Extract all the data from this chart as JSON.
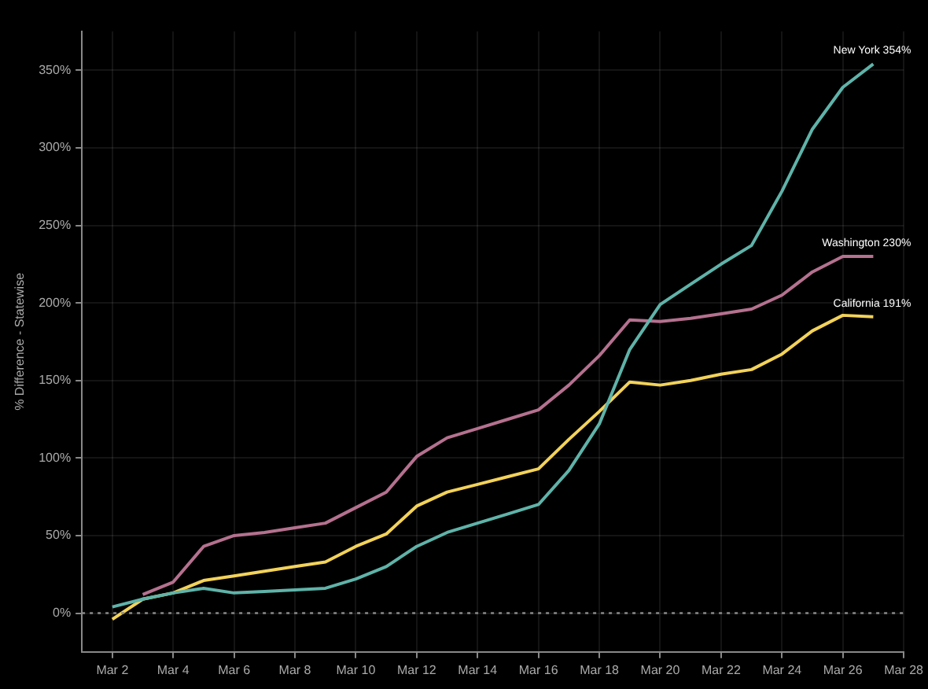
{
  "chart_data": {
    "type": "line",
    "ylabel": "% Difference - Statewise",
    "x": [
      "--03-02",
      "--03-03",
      "--03-04",
      "--03-05",
      "--03-06",
      "--03-07",
      "--03-08",
      "--03-09",
      "--03-10",
      "--03-11",
      "--03-12",
      "--03-13",
      "--03-14",
      "--03-15",
      "--03-16",
      "--03-17",
      "--03-18",
      "--03-19",
      "--03-20",
      "--03-21",
      "--03-22",
      "--03-23",
      "--03-24",
      "--03-25",
      "--03-26",
      "--03-27"
    ],
    "series": [
      {
        "color": "#5fb3a9",
        "values": [
          4,
          9,
          13,
          16,
          13,
          14,
          15,
          16,
          22,
          30,
          43,
          52,
          58,
          64,
          70,
          92,
          122,
          170,
          199,
          212,
          225,
          237,
          272,
          312,
          339,
          354
        ]
      },
      {
        "color": "#b5718f",
        "values": [
          null,
          12,
          20,
          43,
          50,
          52,
          55,
          58,
          68,
          78,
          101,
          113,
          119,
          125,
          131,
          147,
          166,
          189,
          188,
          190,
          193,
          196,
          205,
          220,
          230,
          230
        ]
      },
      {
        "color": "#f2d25a",
        "values": [
          -4,
          9,
          13,
          21,
          24,
          27,
          30,
          33,
          43,
          51,
          69,
          78,
          83,
          88,
          93,
          112,
          130,
          149,
          147,
          150,
          154,
          157,
          167,
          182,
          192,
          191
        ]
      }
    ],
    "xlim": [
      "--03-01",
      "--03-28"
    ],
    "xticks": [
      {
        "value": "--03-02",
        "label": "Mar 2"
      },
      {
        "value": "--03-04",
        "label": "Mar 4"
      },
      {
        "value": "--03-06",
        "label": "Mar 6"
      },
      {
        "value": "--03-08",
        "label": "Mar 8"
      },
      {
        "value": "--03-10",
        "label": "Mar 10"
      },
      {
        "value": "--03-12",
        "label": "Mar 12"
      },
      {
        "value": "--03-14",
        "label": "Mar 14"
      },
      {
        "value": "--03-16",
        "label": "Mar 16"
      },
      {
        "value": "--03-18",
        "label": "Mar 18"
      },
      {
        "value": "--03-20",
        "label": "Mar 20"
      },
      {
        "value": "--03-22",
        "label": "Mar 22"
      },
      {
        "value": "--03-24",
        "label": "Mar 24"
      },
      {
        "value": "--03-26",
        "label": "Mar 26"
      },
      {
        "value": "--03-28",
        "label": "Mar 28"
      }
    ],
    "ylim": [
      -25,
      375
    ],
    "yticks": [
      {
        "value": 0,
        "label": "0%"
      },
      {
        "value": 50,
        "label": "50%"
      },
      {
        "value": 100,
        "label": "100%"
      },
      {
        "value": 150,
        "label": "150%"
      },
      {
        "value": 200,
        "label": "200%"
      },
      {
        "value": 250,
        "label": "250%"
      },
      {
        "value": 300,
        "label": "300%"
      },
      {
        "value": 350,
        "label": "350%"
      }
    ],
    "ref_lines": [
      {
        "axis": "y",
        "value": 0,
        "color": "#888888",
        "line_style": "dotted"
      }
    ],
    "annotations": [
      {
        "text": "New York 354%",
        "x": "--03-27",
        "y": 354
      },
      {
        "text": "Washington 230%",
        "x": "--03-27",
        "y": 230
      },
      {
        "text": "California 191%",
        "x": "--03-27",
        "y": 191
      }
    ],
    "grid": true,
    "legend": false,
    "marker": "none",
    "line_style": "solid"
  }
}
